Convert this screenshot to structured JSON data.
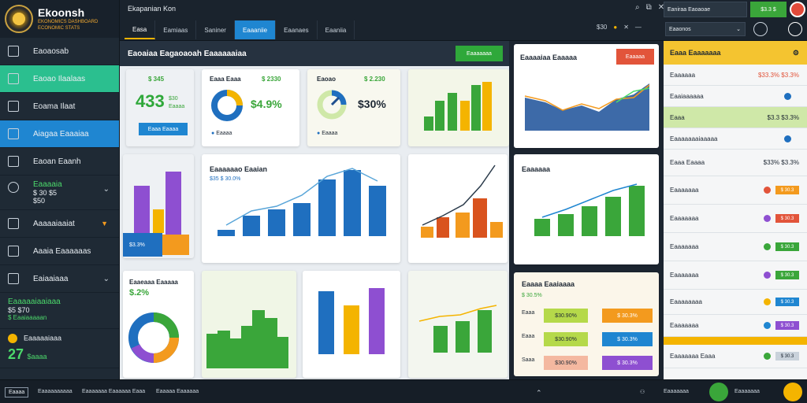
{
  "brand": {
    "name": "Ekoonsh",
    "sub1": "EKONOMICS DASHBOARD",
    "sub2": "ECONOMIC STATS"
  },
  "topbar": {
    "title": "Ekapanian Kon",
    "tabs": [
      "Easa",
      "Eamiaas",
      "Saniner",
      "Eaaaniie",
      "Eaanaes",
      "Eaaniia"
    ],
    "search_value": "Eaniraa Eaoaoae",
    "green_value": "$3.3 $",
    "sub_label": "$30",
    "select_value": "Eaaonos"
  },
  "sidebar": {
    "items": [
      {
        "label": "Eaoaosab"
      },
      {
        "label": "Eaoao Ilaalaas"
      },
      {
        "label": "Eoama Ilaat"
      },
      {
        "label": "Aiagaa Eaaaiaa"
      },
      {
        "label": "Eaoan Eaanh"
      }
    ],
    "block1": {
      "title": "Eaaaaia",
      "line1": "$ 30 $5",
      "line2": "$50"
    },
    "item_after": {
      "label": "Aaaaaiaaiat"
    },
    "item_after2": {
      "label": "Aaaia Eaaaaaas"
    },
    "item_after3": {
      "label": "Eaiaaiaaa"
    },
    "block2": {
      "title": "Eaaaaaiaaiaaa",
      "line1": "$5 $70",
      "line2": "$ Eaaiaaaaan"
    },
    "block3": {
      "label": "Eaaaaaiaaa",
      "big": "27",
      "small": "$aaaa"
    }
  },
  "panel": {
    "title": "Eaoaiaa Eagaoaoah Eaaaaaaiaa",
    "button": "Eaaaaaaa"
  },
  "cards": {
    "c1": {
      "top": "$ 345",
      "big": "433",
      "sub1": "$30",
      "sub2": "Eaaaa",
      "btn": "Eaaa Eaaaa"
    },
    "c2": {
      "title": "Eaaa Eaaa",
      "value": "$ 2330",
      "pct": "$4.9%",
      "legend": "Eaaaa"
    },
    "c3": {
      "title": "Eaoao",
      "value": "$ 2.230",
      "pct": "$30%",
      "legend": "Eaaaa"
    },
    "c5_pct": "$3.3%",
    "c6": {
      "title": "Eaaaaaao Eaaian",
      "sub": "$35 $ 30.0%"
    },
    "c9": {
      "title": "Eaaeaaa Eaaaaa",
      "pct": "$.2%"
    }
  },
  "rightcol": {
    "c1": {
      "title": "Eaaaaiaa Eaaaaa",
      "btn": "Eaaaaa"
    },
    "c2": {
      "title": "Eaaaaaa"
    },
    "c3": {
      "title": "Eaaaa Eaaiaaaa",
      "tag": "$ 30.5%",
      "rows": [
        {
          "left": "$30.90%",
          "right": "$ 30.3%"
        },
        {
          "left": "$30.90%",
          "right": "$ 30.3%"
        },
        {
          "left": "$30.90%",
          "right": "$ 30.3%"
        }
      ],
      "row_labels": [
        "Eaaa",
        "Eaaa",
        "Saaa"
      ]
    }
  },
  "farright": {
    "head": "Eaaa Eaaaaaaa",
    "rows": [
      {
        "label": "Eaaaaaa",
        "value": "$33.3% $3.3%"
      },
      {
        "label": "Eaaiaaaaaa",
        "value": ""
      },
      {
        "label": "Eaaa",
        "value": "$3.3 $3.3%"
      },
      {
        "label": "Eaaaaaaaiaaaaa",
        "value": ""
      },
      {
        "label": "Eaaa Eaaaa",
        "value": "$33% $3.3%"
      },
      {
        "label": "Eaaaaaaa",
        "value": "$ 30.3"
      },
      {
        "label": "Eaaaaaaa",
        "value": "$ 30.3"
      },
      {
        "label": "Eaaaaaaa",
        "value": "$ 30.3"
      },
      {
        "label": "Eaaaaaaa",
        "value": "$ 30.3"
      },
      {
        "label": "Eaaaaaaaa",
        "value": "$ 30.3"
      },
      {
        "label": "Eaaaaaaa",
        "value": "$ 30.3"
      },
      {
        "label": "Eaaaaaaa Eaaa",
        "value": "$ 30.3"
      }
    ]
  },
  "bottombar": {
    "btn": "Eaaaa",
    "text1": "Eaaaaaaaaaa",
    "text2": "Eaaaaaaa Eaaaaaa Eaaa",
    "text3": "Eaaaaa Eaaaaaa",
    "right1": "Eaaaaaaa",
    "right2": "Eaaaaaaa"
  }
}
